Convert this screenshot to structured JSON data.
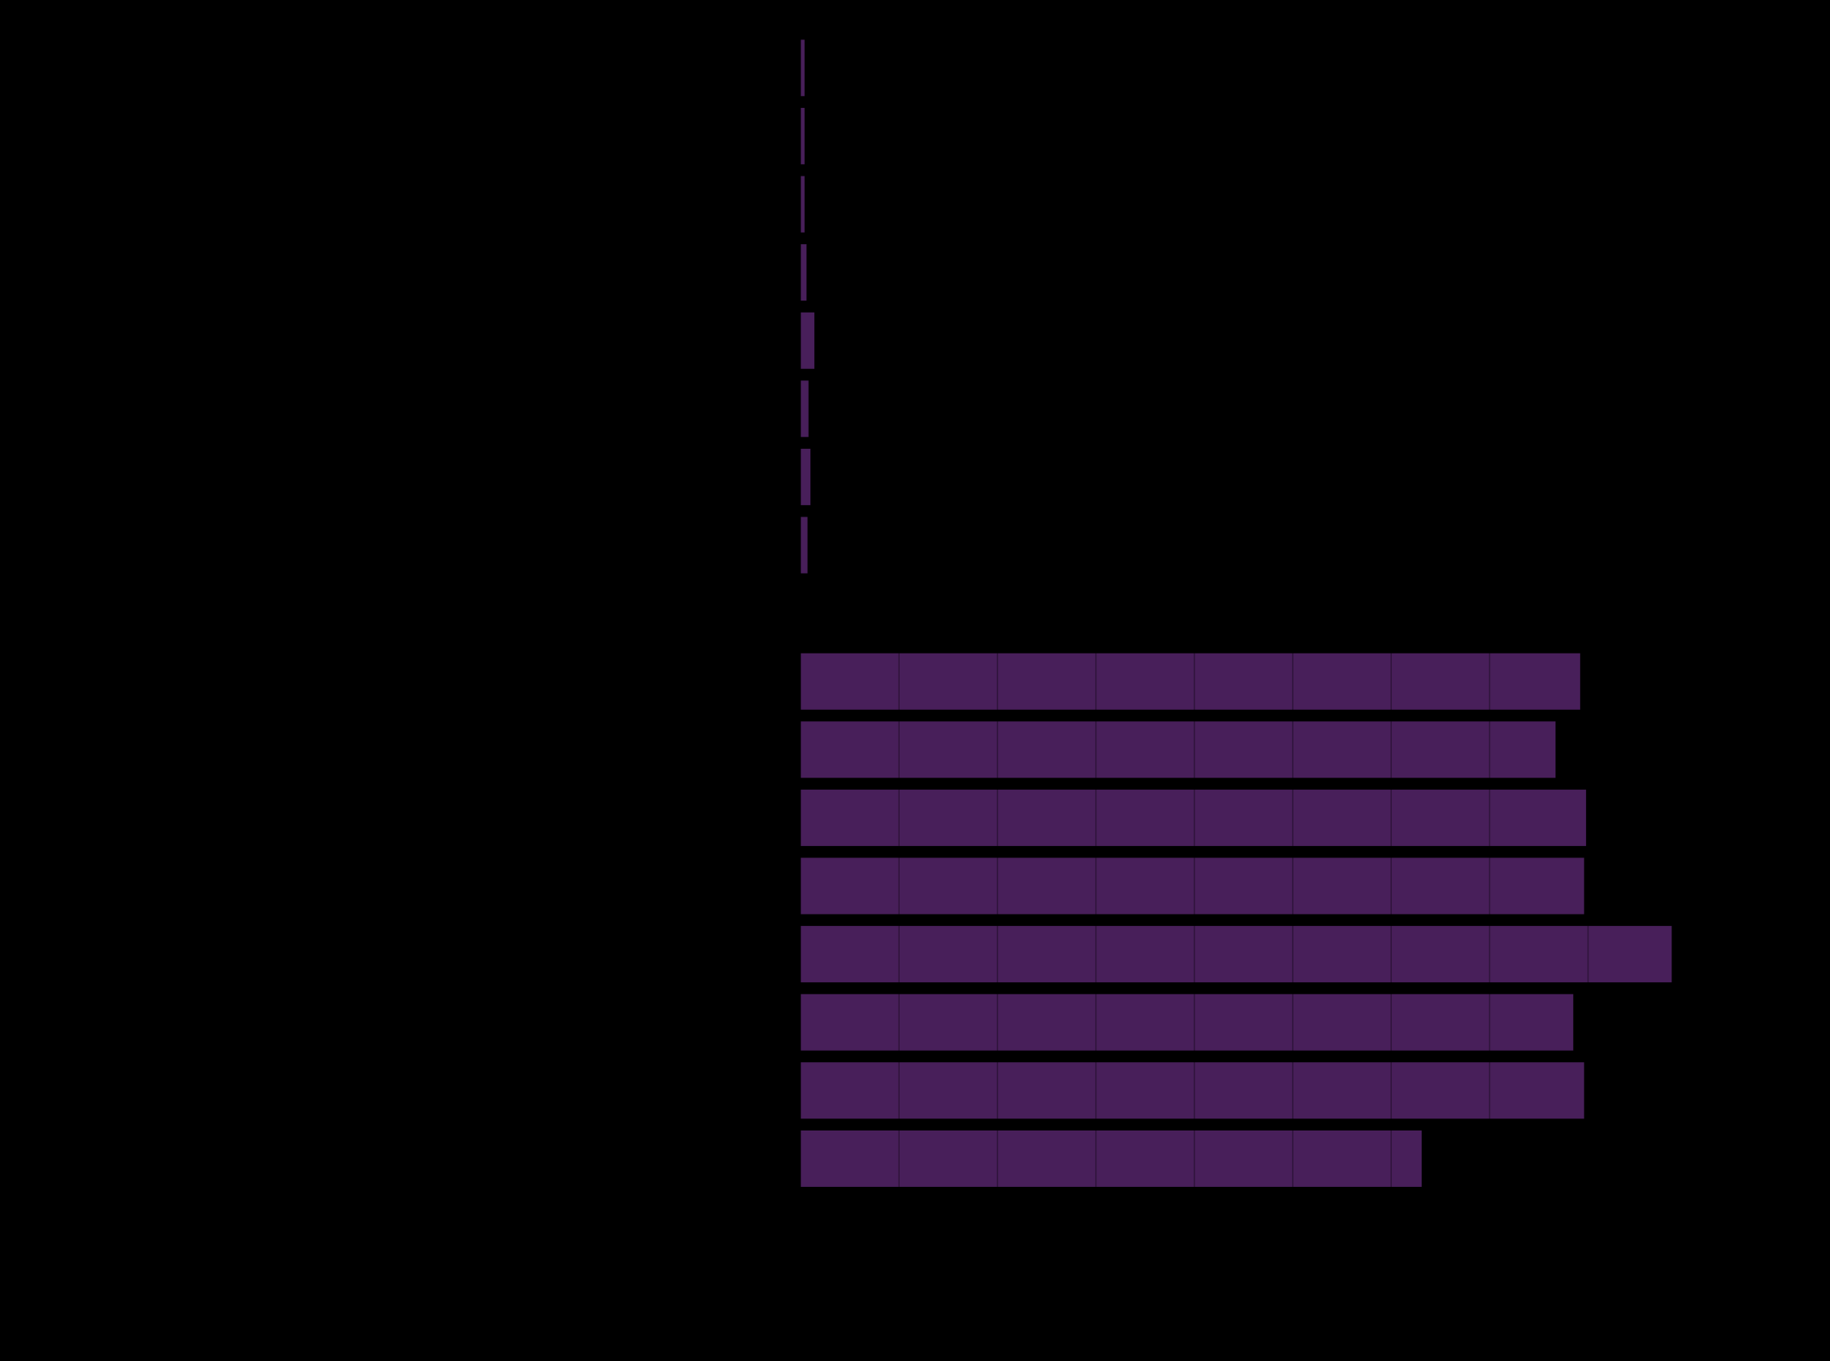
{
  "chart_data": {
    "type": "barh",
    "categories": [
      null,
      null,
      null,
      null,
      null,
      null,
      null,
      null,
      null,
      null,
      null,
      null,
      null,
      null,
      null,
      null,
      null
    ],
    "values": [
      0.04,
      0.04,
      0.04,
      0.06,
      0.14,
      0.08,
      0.1,
      0.07,
      null,
      7.92,
      7.67,
      7.98,
      7.96,
      8.85,
      7.85,
      7.96,
      6.31
    ],
    "color": "#481f5a",
    "xlim": [
      0,
      10
    ],
    "xticks": [
      0,
      1,
      2,
      3,
      4,
      5,
      6,
      7,
      8,
      9,
      10
    ],
    "grid": true
  }
}
